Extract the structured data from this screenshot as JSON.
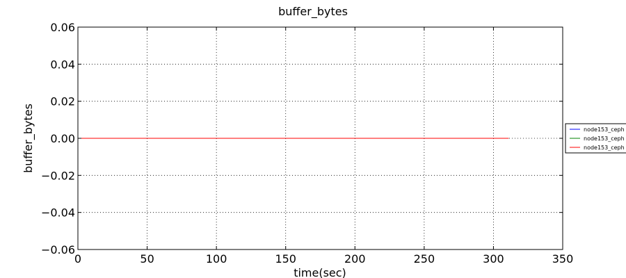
{
  "chart_data": {
    "type": "line",
    "title": "buffer_bytes",
    "xlabel": "time(sec)",
    "ylabel": "buffer_bytes",
    "xlim": [
      0,
      350
    ],
    "ylim": [
      -0.06,
      0.06
    ],
    "x_ticks": [
      0,
      50,
      100,
      150,
      200,
      250,
      300,
      350
    ],
    "x_tick_labels": [
      "0",
      "50",
      "100",
      "150",
      "200",
      "250",
      "300",
      "350"
    ],
    "y_ticks": [
      0.06,
      0.04,
      0.02,
      0.0,
      -0.02,
      -0.04,
      -0.06
    ],
    "y_tick_labels": [
      "0.06",
      "0.04",
      "0.02",
      "0.00",
      "−0.02",
      "−0.04",
      "−0.06"
    ],
    "grid": true,
    "legend_placement": "right",
    "series": [
      {
        "name": "node153_ceph",
        "color": "#0000ff",
        "x": [
          0,
          311
        ],
        "y": [
          0,
          0
        ]
      },
      {
        "name": "node153_ceph",
        "color": "#008000",
        "x": [
          0,
          311
        ],
        "y": [
          0,
          0
        ]
      },
      {
        "name": "node153_ceph",
        "color": "#ff0000",
        "x": [
          0,
          311
        ],
        "y": [
          0,
          0
        ]
      }
    ]
  }
}
